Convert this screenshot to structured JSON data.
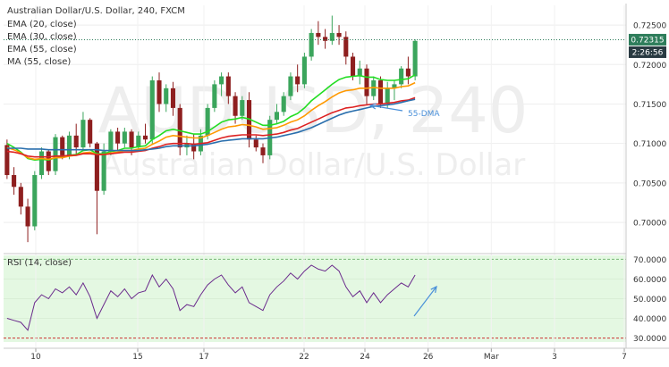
{
  "header": {
    "title": "Australian Dollar/U.S. Dollar, 240, FXCM",
    "indicators": [
      "EMA (20, close)",
      "EMA (30, close)",
      "EMA (55, close)",
      "MA (55, close)"
    ]
  },
  "watermark": {
    "symbol": "AUDUSD, 240",
    "name": "Australian Dollar/U.S. Dollar"
  },
  "price_badges": {
    "last_price": "0.72315",
    "countdown": "2:26:56"
  },
  "annotation": {
    "ma_label": "55-DMA"
  },
  "rsi_panel": {
    "title": "RSI (14, close)"
  },
  "colors": {
    "up": "#3ba55c",
    "down": "#8e1f1f",
    "ema20": "#22dd22",
    "ema30": "#ff9900",
    "ema55": "#dd2222",
    "ma55": "#2a6fad",
    "rsi_line": "#6a2a8c",
    "rsi_band": "#e4f8e2",
    "annotation": "#4a90d9",
    "badge": "#2e7d5b"
  },
  "chart_data": [
    {
      "type": "candlestick",
      "title": "Australian Dollar/U.S. Dollar, 240, FXCM",
      "ylim": [
        0.6965,
        0.7275
      ],
      "y_ticks": [
        "0.72500",
        "0.72000",
        "0.71500",
        "0.71000",
        "0.70500",
        "0.70000"
      ],
      "x_tick_labels": [
        "10",
        "15",
        "17",
        "22",
        "24",
        "26",
        "Mar",
        "3",
        "7"
      ],
      "last_price": 0.72315,
      "candles": [
        [
          0.7098,
          0.7105,
          0.7055,
          0.706
        ],
        [
          0.706,
          0.707,
          0.7035,
          0.7045
        ],
        [
          0.7045,
          0.705,
          0.701,
          0.702
        ],
        [
          0.702,
          0.703,
          0.6975,
          0.6995
        ],
        [
          0.6995,
          0.7065,
          0.699,
          0.706
        ],
        [
          0.706,
          0.7095,
          0.7055,
          0.709
        ],
        [
          0.709,
          0.7092,
          0.706,
          0.7065
        ],
        [
          0.7065,
          0.7112,
          0.706,
          0.7108
        ],
        [
          0.7108,
          0.711,
          0.708,
          0.7085
        ],
        [
          0.7085,
          0.7115,
          0.708,
          0.711
        ],
        [
          0.711,
          0.7125,
          0.7085,
          0.7095
        ],
        [
          0.7095,
          0.714,
          0.709,
          0.713
        ],
        [
          0.713,
          0.7132,
          0.7095,
          0.71
        ],
        [
          0.71,
          0.7102,
          0.6985,
          0.704
        ],
        [
          0.704,
          0.71,
          0.7035,
          0.709
        ],
        [
          0.709,
          0.7118,
          0.7085,
          0.7115
        ],
        [
          0.7115,
          0.712,
          0.709,
          0.71
        ],
        [
          0.71,
          0.712,
          0.7095,
          0.7115
        ],
        [
          0.7115,
          0.7118,
          0.7085,
          0.7095
        ],
        [
          0.7095,
          0.7115,
          0.709,
          0.711
        ],
        [
          0.711,
          0.7125,
          0.71,
          0.7105
        ],
        [
          0.7105,
          0.7185,
          0.71,
          0.718
        ],
        [
          0.718,
          0.719,
          0.714,
          0.715
        ],
        [
          0.715,
          0.7175,
          0.714,
          0.717
        ],
        [
          0.717,
          0.7178,
          0.7135,
          0.7145
        ],
        [
          0.7145,
          0.715,
          0.7085,
          0.7095
        ],
        [
          0.7095,
          0.711,
          0.7085,
          0.71
        ],
        [
          0.71,
          0.7112,
          0.708,
          0.709
        ],
        [
          0.709,
          0.7118,
          0.7085,
          0.711
        ],
        [
          0.711,
          0.715,
          0.7105,
          0.7145
        ],
        [
          0.7145,
          0.718,
          0.714,
          0.7175
        ],
        [
          0.7175,
          0.719,
          0.716,
          0.7185
        ],
        [
          0.7185,
          0.719,
          0.715,
          0.716
        ],
        [
          0.716,
          0.7165,
          0.7125,
          0.7135
        ],
        [
          0.7135,
          0.716,
          0.713,
          0.7155
        ],
        [
          0.7155,
          0.7165,
          0.7095,
          0.7105
        ],
        [
          0.7105,
          0.711,
          0.709,
          0.7095
        ],
        [
          0.7095,
          0.71,
          0.7075,
          0.7085
        ],
        [
          0.7085,
          0.7135,
          0.708,
          0.713
        ],
        [
          0.713,
          0.715,
          0.7125,
          0.714
        ],
        [
          0.714,
          0.7165,
          0.7135,
          0.716
        ],
        [
          0.716,
          0.719,
          0.7155,
          0.7185
        ],
        [
          0.7185,
          0.72,
          0.7165,
          0.7175
        ],
        [
          0.7175,
          0.7215,
          0.717,
          0.721
        ],
        [
          0.721,
          0.7245,
          0.7205,
          0.724
        ],
        [
          0.724,
          0.7255,
          0.7225,
          0.7235
        ],
        [
          0.7235,
          0.7245,
          0.722,
          0.723
        ],
        [
          0.723,
          0.7262,
          0.7225,
          0.724
        ],
        [
          0.724,
          0.725,
          0.7225,
          0.7235
        ],
        [
          0.7235,
          0.7242,
          0.72,
          0.721
        ],
        [
          0.721,
          0.7215,
          0.718,
          0.7185
        ],
        [
          0.7185,
          0.7205,
          0.7175,
          0.7195
        ],
        [
          0.7195,
          0.72,
          0.715,
          0.716
        ],
        [
          0.716,
          0.7185,
          0.7155,
          0.718
        ],
        [
          0.718,
          0.7185,
          0.7145,
          0.715
        ],
        [
          0.715,
          0.7178,
          0.7145,
          0.717
        ],
        [
          0.717,
          0.718,
          0.7155,
          0.7175
        ],
        [
          0.7175,
          0.7198,
          0.717,
          0.7195
        ],
        [
          0.7195,
          0.721,
          0.7175,
          0.7185
        ],
        [
          0.7185,
          0.7232,
          0.718,
          0.723
        ]
      ],
      "series": [
        {
          "name": "EMA (20, close)",
          "values": [
            0.71,
            0.7095,
            0.7089,
            0.7081,
            0.7079,
            0.708,
            0.7079,
            0.7082,
            0.7083,
            0.7085,
            0.7086,
            0.7091,
            0.7092,
            0.7087,
            0.7087,
            0.709,
            0.7091,
            0.7094,
            0.7094,
            0.7096,
            0.7097,
            0.7105,
            0.711,
            0.7116,
            0.7118,
            0.7116,
            0.7114,
            0.7112,
            0.7112,
            0.7115,
            0.7121,
            0.7127,
            0.713,
            0.7131,
            0.7133,
            0.7131,
            0.7127,
            0.7123,
            0.7123,
            0.7125,
            0.7128,
            0.7134,
            0.7138,
            0.7145,
            0.7154,
            0.7161,
            0.7168,
            0.7175,
            0.7181,
            0.7184,
            0.7185,
            0.7186,
            0.7184,
            0.7184,
            0.7181,
            0.718,
            0.718,
            0.7181,
            0.7182,
            0.7187
          ]
        },
        {
          "name": "EMA (30, close)",
          "values": [
            0.7095,
            0.7092,
            0.7088,
            0.7082,
            0.708,
            0.7081,
            0.708,
            0.7082,
            0.7082,
            0.7084,
            0.7085,
            0.7088,
            0.7089,
            0.7086,
            0.7086,
            0.7088,
            0.7089,
            0.7091,
            0.7091,
            0.7093,
            0.7094,
            0.7099,
            0.7103,
            0.7108,
            0.711,
            0.7109,
            0.7108,
            0.7107,
            0.7107,
            0.711,
            0.7114,
            0.7118,
            0.7121,
            0.7122,
            0.7124,
            0.7123,
            0.7121,
            0.7118,
            0.7119,
            0.712,
            0.7123,
            0.7127,
            0.713,
            0.7135,
            0.7142,
            0.7148,
            0.7153,
            0.7159,
            0.7164,
            0.7167,
            0.7168,
            0.717,
            0.717,
            0.7171,
            0.717,
            0.717,
            0.717,
            0.7172,
            0.7173,
            0.7177
          ]
        },
        {
          "name": "EMA (55, close)",
          "values": [
            0.709,
            0.7089,
            0.7087,
            0.7084,
            0.7083,
            0.7083,
            0.7083,
            0.7084,
            0.7084,
            0.7085,
            0.7085,
            0.7087,
            0.7087,
            0.7086,
            0.7086,
            0.7087,
            0.7088,
            0.7089,
            0.7089,
            0.709,
            0.7091,
            0.7094,
            0.7096,
            0.7099,
            0.71,
            0.71,
            0.71,
            0.7099,
            0.71,
            0.7101,
            0.7104,
            0.7107,
            0.7109,
            0.711,
            0.7111,
            0.7111,
            0.7111,
            0.711,
            0.7111,
            0.7112,
            0.7114,
            0.7117,
            0.7119,
            0.7123,
            0.7127,
            0.7131,
            0.7135,
            0.7139,
            0.7142,
            0.7145,
            0.7146,
            0.7148,
            0.7149,
            0.715,
            0.715,
            0.7151,
            0.7152,
            0.7154,
            0.7155,
            0.7158
          ]
        },
        {
          "name": "MA (55, close)",
          "values": [
            0.7094,
            0.7094,
            0.7094,
            0.7093,
            0.7093,
            0.7093,
            0.7092,
            0.7092,
            0.7092,
            0.7092,
            0.7092,
            0.7092,
            0.7092,
            0.7092,
            0.7091,
            0.7091,
            0.7091,
            0.7091,
            0.7091,
            0.7091,
            0.7092,
            0.7093,
            0.7094,
            0.7096,
            0.7097,
            0.7097,
            0.7097,
            0.7097,
            0.7098,
            0.7099,
            0.7101,
            0.7103,
            0.7104,
            0.7105,
            0.7106,
            0.7106,
            0.7106,
            0.7106,
            0.7107,
            0.7108,
            0.711,
            0.7112,
            0.7114,
            0.7117,
            0.712,
            0.7124,
            0.7128,
            0.7132,
            0.7136,
            0.7139,
            0.7141,
            0.7143,
            0.7145,
            0.7147,
            0.7148,
            0.7149,
            0.715,
            0.7152,
            0.7154,
            0.7156
          ]
        }
      ]
    },
    {
      "type": "line",
      "title": "RSI (14, close)",
      "ylim": [
        28,
        72
      ],
      "y_ticks": [
        "70.0000",
        "60.0000",
        "50.0000",
        "40.0000",
        "30.0000"
      ],
      "levels": [
        70,
        30
      ],
      "series": [
        {
          "name": "RSI (14, close)",
          "values": [
            40,
            39,
            38,
            34,
            48,
            52,
            50,
            55,
            53,
            56,
            52,
            58,
            51,
            40,
            47,
            54,
            51,
            55,
            50,
            53,
            54,
            62,
            56,
            60,
            55,
            44,
            47,
            46,
            52,
            57,
            60,
            62,
            57,
            53,
            56,
            48,
            46,
            44,
            52,
            56,
            59,
            63,
            60,
            64,
            67,
            65,
            64,
            67,
            64,
            56,
            51,
            54,
            48,
            53,
            48,
            52,
            55,
            58,
            56,
            62
          ]
        }
      ]
    }
  ]
}
